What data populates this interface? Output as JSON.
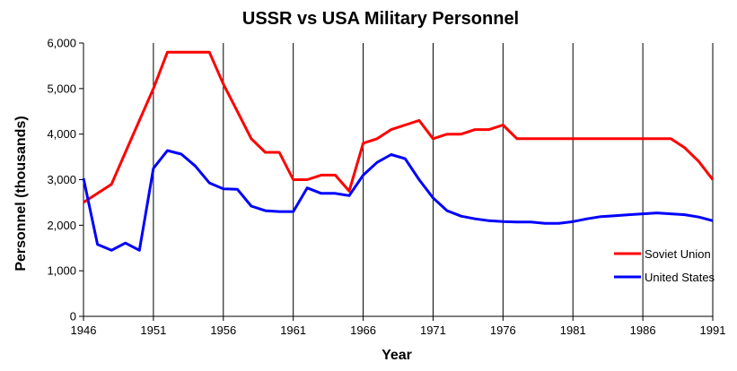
{
  "chart_data": {
    "type": "line",
    "title": "USSR vs USA Military  Personnel",
    "xlabel": "Year",
    "ylabel": "Personnel (thousands)",
    "xlim": [
      1946,
      1991
    ],
    "ylim": [
      0,
      6000
    ],
    "x_ticks": [
      1946,
      1951,
      1956,
      1961,
      1966,
      1971,
      1976,
      1981,
      1986,
      1991
    ],
    "x_tick_labels": [
      "1946",
      "1951",
      "1956",
      "1961",
      "1966",
      "1971",
      "1976",
      "1981",
      "1986",
      "1991"
    ],
    "y_ticks": [
      0,
      1000,
      2000,
      3000,
      4000,
      5000,
      6000
    ],
    "y_tick_labels": [
      "0",
      "1,000",
      "2,000",
      "3,000",
      "4,000",
      "5,000",
      "6,000"
    ],
    "grid": "vertical",
    "legend_position": "right",
    "series": [
      {
        "name": "Soviet Union",
        "color": "#ff0000",
        "x": [
          1946,
          1947,
          1948,
          1949,
          1950,
          1951,
          1952,
          1953,
          1954,
          1955,
          1956,
          1957,
          1958,
          1959,
          1960,
          1961,
          1962,
          1963,
          1964,
          1965,
          1966,
          1967,
          1968,
          1969,
          1970,
          1971,
          1972,
          1973,
          1974,
          1975,
          1976,
          1977,
          1978,
          1979,
          1980,
          1981,
          1982,
          1983,
          1984,
          1985,
          1986,
          1987,
          1988,
          1989,
          1990,
          1991
        ],
        "values": [
          2500,
          2700,
          2900,
          3600,
          4300,
          5000,
          5800,
          5800,
          5800,
          5800,
          5100,
          4500,
          3900,
          3600,
          3600,
          3000,
          3000,
          3100,
          3100,
          2750,
          3800,
          3900,
          4100,
          4200,
          4300,
          3900,
          4000,
          4000,
          4100,
          4100,
          4200,
          3900,
          3900,
          3900,
          3900,
          3900,
          3900,
          3900,
          3900,
          3900,
          3900,
          3900,
          3900,
          3700,
          3400,
          3000
        ]
      },
      {
        "name": "United States",
        "color": "#0000ff",
        "x": [
          1946,
          1947,
          1948,
          1949,
          1950,
          1951,
          1952,
          1953,
          1954,
          1955,
          1956,
          1957,
          1958,
          1959,
          1960,
          1961,
          1962,
          1963,
          1964,
          1965,
          1966,
          1967,
          1968,
          1969,
          1970,
          1971,
          1972,
          1973,
          1974,
          1975,
          1976,
          1977,
          1978,
          1979,
          1980,
          1981,
          1982,
          1983,
          1984,
          1985,
          1986,
          1987,
          1988,
          1989,
          1990,
          1991
        ],
        "values": [
          3030,
          1580,
          1450,
          1610,
          1450,
          3250,
          3640,
          3560,
          3300,
          2930,
          2800,
          2790,
          2420,
          2320,
          2300,
          2300,
          2820,
          2700,
          2700,
          2650,
          3100,
          3380,
          3550,
          3460,
          3000,
          2600,
          2320,
          2200,
          2140,
          2100,
          2080,
          2070,
          2070,
          2040,
          2040,
          2080,
          2140,
          2190,
          2210,
          2230,
          2250,
          2270,
          2250,
          2230,
          2180,
          2100
        ]
      }
    ]
  }
}
